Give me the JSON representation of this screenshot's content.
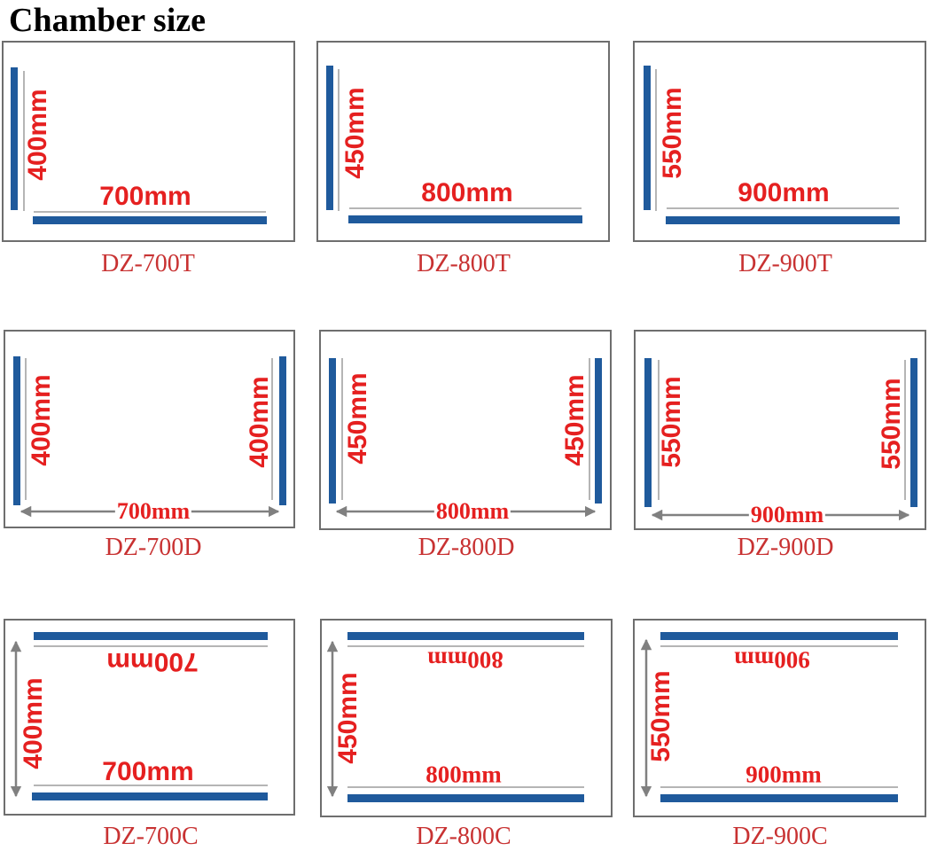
{
  "title": "Chamber size",
  "colors": {
    "bar": "#1f5a9c",
    "dimension_text": "#e52020",
    "model_text": "#c83232",
    "frame": "#6e6e6e"
  },
  "rows": [
    {
      "type": "T",
      "items": [
        {
          "model": "DZ-700T",
          "width_label": "700mm",
          "height_label": "400mm"
        },
        {
          "model": "DZ-800T",
          "width_label": "800mm",
          "height_label": "450mm"
        },
        {
          "model": "DZ-900T",
          "width_label": "900mm",
          "height_label": "550mm"
        }
      ]
    },
    {
      "type": "D",
      "items": [
        {
          "model": "DZ-700D",
          "width_label": "700mm",
          "height_label": "400mm"
        },
        {
          "model": "DZ-800D",
          "width_label": "800mm",
          "height_label": "450mm"
        },
        {
          "model": "DZ-900D",
          "width_label": "900mm",
          "height_label": "550mm"
        }
      ]
    },
    {
      "type": "C",
      "items": [
        {
          "model": "DZ-700C",
          "width_label": "700mm",
          "height_label": "400mm"
        },
        {
          "model": "DZ-800C",
          "width_label": "800mm",
          "height_label": "450mm"
        },
        {
          "model": "DZ-900C",
          "width_label": "900mm",
          "height_label": "550mm"
        }
      ]
    }
  ]
}
